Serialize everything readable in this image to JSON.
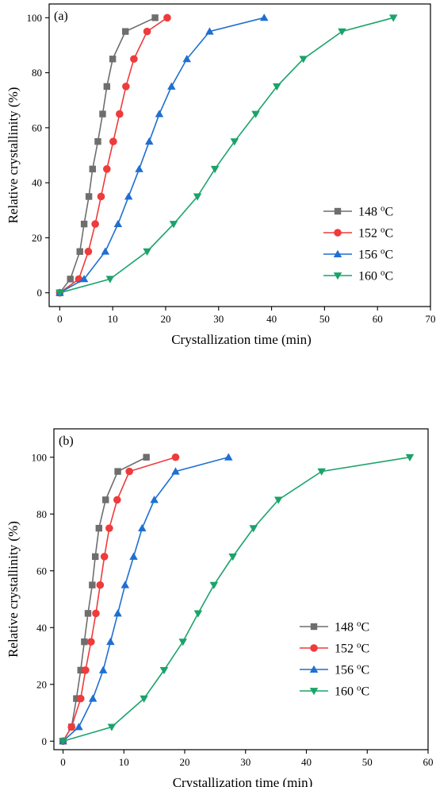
{
  "chart_data": [
    {
      "type": "line",
      "panel_label": "(a)",
      "xlabel": "Crystallization time (min)",
      "ylabel": "Relative crystallinity (%)",
      "xlim": [
        -2,
        70
      ],
      "ylim": [
        -5,
        105
      ],
      "xticks": [
        0,
        10,
        20,
        30,
        40,
        50,
        60,
        70
      ],
      "yticks": [
        0,
        20,
        40,
        60,
        80,
        100
      ],
      "legend_position": "lower-right",
      "series": [
        {
          "name": "148 ",
          "sup": "o",
          "unit": "C",
          "color": "#6e6e6e",
          "marker": "square",
          "x": [
            0,
            2,
            3.8,
            4.6,
            5.5,
            6.2,
            7.2,
            8.1,
            8.9,
            10,
            12.4,
            18
          ],
          "y": [
            0,
            5,
            15,
            25,
            35,
            45,
            55,
            65,
            75,
            85,
            95,
            100
          ]
        },
        {
          "name": "152 ",
          "sup": "o",
          "unit": "C",
          "color": "#ee3b3b",
          "marker": "circle",
          "x": [
            0,
            3.6,
            5.4,
            6.7,
            7.8,
            8.9,
            10.1,
            11.3,
            12.5,
            14,
            16.5,
            20.3
          ],
          "y": [
            0,
            5,
            15,
            25,
            35,
            45,
            55,
            65,
            75,
            85,
            95,
            100
          ]
        },
        {
          "name": "156 ",
          "sup": "o",
          "unit": "C",
          "color": "#1f6fd1",
          "marker": "triangle-up",
          "x": [
            0,
            4.6,
            8.6,
            11,
            13,
            15,
            16.9,
            18.8,
            21.1,
            24,
            28.3,
            38.6
          ],
          "y": [
            0,
            5,
            15,
            25,
            35,
            45,
            55,
            65,
            75,
            85,
            95,
            100
          ]
        },
        {
          "name": "160 ",
          "sup": "o",
          "unit": "C",
          "color": "#1aa36a",
          "marker": "triangle-down",
          "x": [
            0,
            9.5,
            16.5,
            21.5,
            26,
            29.3,
            33,
            37,
            41,
            46,
            53.3,
            63
          ],
          "y": [
            0,
            5,
            15,
            25,
            35,
            45,
            55,
            65,
            75,
            85,
            95,
            100
          ]
        }
      ]
    },
    {
      "type": "line",
      "panel_label": "(b)",
      "xlabel": "Crystallization time (min)",
      "ylabel": "Relative crystallinity (%)",
      "xlim": [
        -1.5,
        60
      ],
      "ylim": [
        -3,
        110
      ],
      "xticks": [
        0,
        10,
        20,
        30,
        40,
        50,
        60
      ],
      "yticks": [
        0,
        20,
        40,
        60,
        80,
        100
      ],
      "legend_position": "lower-right",
      "series": [
        {
          "name": "148 ",
          "sup": "o",
          "unit": "C",
          "color": "#6e6e6e",
          "marker": "square",
          "x": [
            0,
            1.4,
            2.2,
            2.9,
            3.5,
            4.1,
            4.8,
            5.3,
            5.9,
            7,
            9,
            13.7
          ],
          "y": [
            0,
            5,
            15,
            25,
            35,
            45,
            55,
            65,
            75,
            85,
            95,
            100
          ]
        },
        {
          "name": "152 ",
          "sup": "o",
          "unit": "C",
          "color": "#ee3b3b",
          "marker": "circle",
          "x": [
            0,
            1.4,
            2.9,
            3.7,
            4.6,
            5.4,
            6.1,
            6.8,
            7.6,
            8.9,
            10.9,
            18.5
          ],
          "y": [
            0,
            5,
            15,
            25,
            35,
            45,
            55,
            65,
            75,
            85,
            95,
            100
          ]
        },
        {
          "name": "156 ",
          "sup": "o",
          "unit": "C",
          "color": "#1f6fd1",
          "marker": "triangle-up",
          "x": [
            0,
            2.6,
            4.9,
            6.6,
            7.8,
            9,
            10.2,
            11.6,
            13,
            15,
            18.5,
            27.2
          ],
          "y": [
            0,
            5,
            15,
            25,
            35,
            45,
            55,
            65,
            75,
            85,
            95,
            100
          ]
        },
        {
          "name": "160 ",
          "sup": "o",
          "unit": "C",
          "color": "#1aa36a",
          "marker": "triangle-down",
          "x": [
            0,
            8,
            13.3,
            16.6,
            19.7,
            22.2,
            24.8,
            27.9,
            31.3,
            35.4,
            42.5,
            57
          ],
          "y": [
            0,
            5,
            15,
            25,
            35,
            45,
            55,
            65,
            75,
            85,
            95,
            100
          ]
        }
      ]
    }
  ]
}
